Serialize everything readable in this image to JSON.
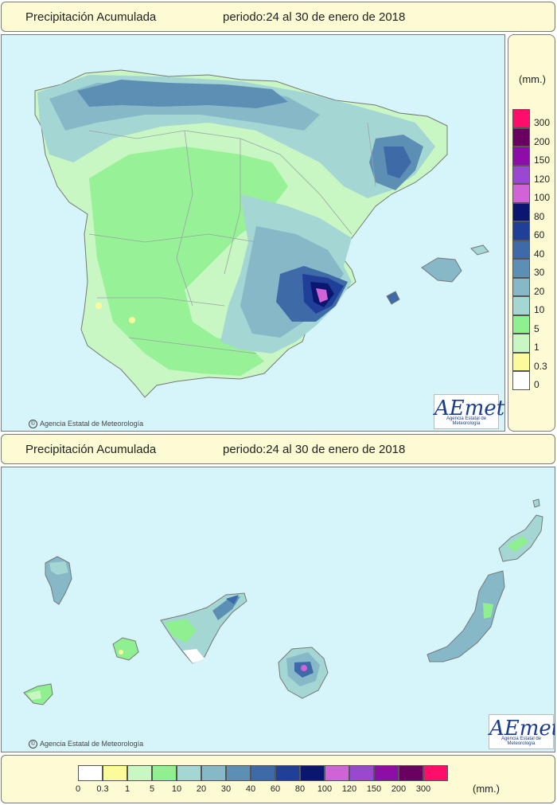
{
  "top": {
    "title": "Precipitación Acumulada",
    "period": "periodo:24 al 30 de enero de 2018",
    "copyright": "Agencia Estatal de Meteorología",
    "logo_text": "AEmet",
    "logo_sub": "Agencia Estatal de Meteorología"
  },
  "bottom": {
    "title": "Precipitación Acumulada",
    "period": "periodo:24 al 30 de enero de 2018",
    "copyright": "Agencia Estatal de Meteorología",
    "logo_text": "AEmet",
    "logo_sub": "Agencia Estatal de Meteorología"
  },
  "legend": {
    "unit": "(mm.)",
    "unit_bottom": "(mm.)",
    "levels": [
      "0",
      "0.3",
      "1",
      "5",
      "10",
      "20",
      "30",
      "40",
      "60",
      "80",
      "100",
      "120",
      "150",
      "200",
      "300"
    ],
    "colors": [
      "#ffffff",
      "#fbfb9b",
      "#c8f7c4",
      "#8ef08e",
      "#a4d6d3",
      "#86b8c8",
      "#5d8fb5",
      "#3e6aa8",
      "#1f3f99",
      "#0b1670",
      "#d063d6",
      "#9a48d0",
      "#8c0da8",
      "#6a0060",
      "#ff0d6a"
    ]
  },
  "map_colors": {
    "sea": "#d6f5fb",
    "light_green": "#c8f7c4",
    "green": "#8ef08e",
    "teal": "#a4d6d3",
    "blue_grey": "#86b8c8",
    "blue": "#5d8fb5",
    "dark_blue": "#3e6aa8",
    "navy": "#1f3f99",
    "deep_navy": "#0b1670",
    "pink": "#d063d6",
    "yellow": "#fbfb9b",
    "border": "#9aa3a8"
  }
}
